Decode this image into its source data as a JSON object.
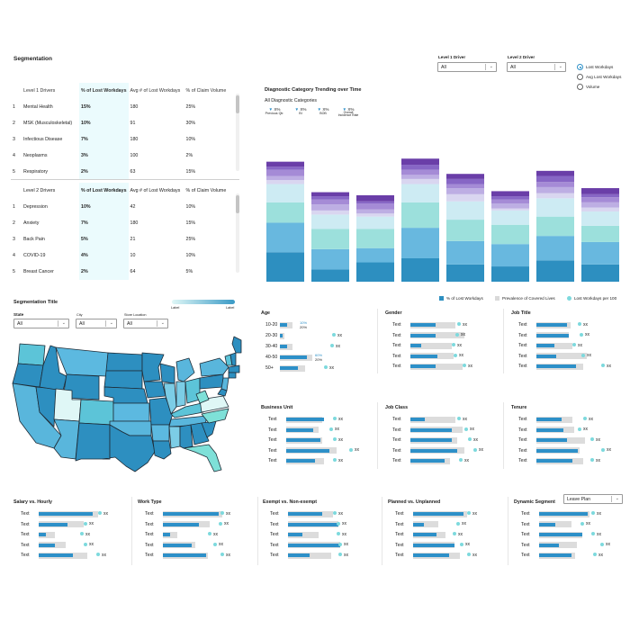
{
  "page_title": "Segmentation",
  "drivers": {
    "level1_label": "Level 1 Driver",
    "level1_value": "All",
    "level2_label": "Level 2 Driver",
    "level2_value": "All"
  },
  "metric_options": [
    {
      "label": "Lost Workdays",
      "selected": true
    },
    {
      "label": "Avg Lost Workdays",
      "selected": false
    },
    {
      "label": "Volume",
      "selected": false
    }
  ],
  "table1": {
    "headers": [
      "Level 1 Drivers",
      "% of Lost Workdays",
      "Avg # of Lost Workdays",
      "% of Claim Volume"
    ],
    "rows": [
      {
        "n": "1",
        "name": "Mental Health",
        "pct": "15%",
        "avg": "180",
        "claim": "25%"
      },
      {
        "n": "2",
        "name": "MSK (Musculoskeletal)",
        "pct": "10%",
        "avg": "91",
        "claim": "30%"
      },
      {
        "n": "3",
        "name": "Infectious Disease",
        "pct": "7%",
        "avg": "180",
        "claim": "10%"
      },
      {
        "n": "4",
        "name": "Neoplasms",
        "pct": "3%",
        "avg": "100",
        "claim": "2%"
      },
      {
        "n": "5",
        "name": "Respiratory",
        "pct": "2%",
        "avg": "63",
        "claim": "15%"
      }
    ]
  },
  "table2": {
    "headers": [
      "Level 2 Drivers",
      "% of Lost Workdays",
      "Avg # of Lost Workdays",
      "% of Claim Volume"
    ],
    "rows": [
      {
        "n": "1",
        "name": "Depression",
        "pct": "10%",
        "avg": "42",
        "claim": "10%"
      },
      {
        "n": "2",
        "name": "Anxiety",
        "pct": "7%",
        "avg": "180",
        "claim": "15%"
      },
      {
        "n": "3",
        "name": "Back Pain",
        "pct": "5%",
        "avg": "21",
        "claim": "25%"
      },
      {
        "n": "4",
        "name": "COVID-19",
        "pct": "4%",
        "avg": "10",
        "claim": "10%"
      },
      {
        "n": "5",
        "name": "Breast Cancer",
        "pct": "2%",
        "avg": "64",
        "claim": "5%"
      }
    ]
  },
  "trend": {
    "title": "Diagnostic Category Trending over Time",
    "subtitle": "All Diagnostic Categories",
    "kpis": [
      {
        "value": "X%",
        "label": "Previous Qtr."
      },
      {
        "value": "X%",
        "label": "BI"
      },
      {
        "value": "X%",
        "label": "BOB"
      },
      {
        "value": "X%",
        "label": "Overall Incidence Rate"
      }
    ]
  },
  "chart_data": {
    "type": "bar",
    "stacked": true,
    "bars": [
      [
        29,
        58,
        78,
        96,
        100,
        104,
        110,
        113,
        118
      ],
      [
        12,
        32,
        52,
        66,
        70,
        76,
        81,
        84,
        88
      ],
      [
        19,
        33,
        52,
        64,
        67,
        71,
        77,
        79,
        85
      ],
      [
        23,
        53,
        78,
        96,
        101,
        105,
        110,
        115,
        121
      ],
      [
        17,
        40,
        61,
        79,
        86,
        92,
        96,
        101,
        106
      ],
      [
        15,
        37,
        56,
        70,
        72,
        77,
        81,
        84,
        89
      ],
      [
        21,
        45,
        64,
        82,
        87,
        93,
        98,
        104,
        109
      ],
      [
        17,
        39,
        55,
        69,
        73,
        78,
        83,
        86,
        92
      ]
    ],
    "colors": [
      "#2d8fc0",
      "#68b8df",
      "#9ce0dc",
      "#cdebf3",
      "#d9d6f0",
      "#bdaee3",
      "#a58bd6",
      "#8766c5",
      "#6a3ea8"
    ],
    "legend": [
      "% of Lost Workdays",
      "Prevalence of Covered Lives",
      "Lost Workdays per 100"
    ],
    "legend_colors": [
      "#2d8fc0",
      "#d9d9d9",
      "#7dd9dd"
    ]
  },
  "segmentation": {
    "title": "Segmentation Title",
    "scale_left": "Label",
    "scale_right": "Label",
    "state_label": "State",
    "state_value": "All",
    "city_label": "City",
    "city_value": "All",
    "store_label": "Store Location",
    "store_value": "All"
  },
  "age": {
    "title": "Age",
    "rows": [
      {
        "label": "10-20",
        "val1": "10%",
        "val2": "20%"
      },
      {
        "label": "20-30",
        "dot": "xx"
      },
      {
        "label": "30-40",
        "dot": "xx"
      },
      {
        "label": "40-50",
        "val1": "60%",
        "val2": "20%"
      },
      {
        "label": "50+",
        "dot": "xx"
      }
    ]
  },
  "small_labels": {
    "row": "Text",
    "xx": "xx"
  },
  "panels": [
    {
      "title": "Gender"
    },
    {
      "title": "Job Title"
    },
    {
      "title": "Business Unit"
    },
    {
      "title": "Job Class"
    },
    {
      "title": "Tenure"
    },
    {
      "title": "Salary vs. Hourly"
    },
    {
      "title": "Work Type"
    },
    {
      "title": "Exempt vs. Non-exempt"
    },
    {
      "title": "Planned vs. Unplanned"
    },
    {
      "title": "Dynamic Segment",
      "dropdown": "Leave Plan"
    }
  ],
  "colors": {
    "accent": "#2d90c8",
    "teal": "#7dd9dd",
    "highlight": "#ebfbfd"
  }
}
